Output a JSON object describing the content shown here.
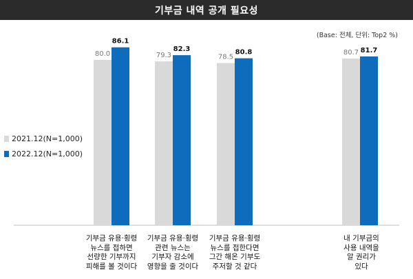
{
  "title": "기부금 내역 공개 필요성",
  "base_note": "(Base: 전체, 단위: Top2 %)",
  "colors": {
    "series1": "#d9d9d9",
    "series2": "#0f6cbd",
    "title_bg": "#2b2b2b"
  },
  "chart_data": {
    "type": "bar",
    "title": "기부금 내역 공개 필요성",
    "categories": [
      "기부금 유용·횡령\n뉴스를 접하면\n선량한 기부까지\n피해를 볼 것이다",
      "기부금 유용·횡령\n관련 뉴스는\n기부자 감소에\n영향을 줄 것이다",
      "기부금 유용·횡령\n뉴스를 접한다면\n그간 해온 기부도\n주저할 것 같다",
      "내 기부금의\n사용 내역을\n알 권리가\n있다"
    ],
    "series": [
      {
        "name": "2021.12(N=1,000)",
        "values": [
          80.0,
          79.3,
          78.5,
          80.7
        ],
        "labels": [
          "80.0",
          "79.3",
          "78.5",
          "80.7"
        ]
      },
      {
        "name": "2022.12(N=1,000)",
        "values": [
          86.1,
          82.3,
          80.8,
          81.7
        ],
        "labels": [
          "86.1",
          "82.3",
          "80.8",
          "81.7"
        ]
      }
    ],
    "legend_position": "left",
    "grid": false
  }
}
